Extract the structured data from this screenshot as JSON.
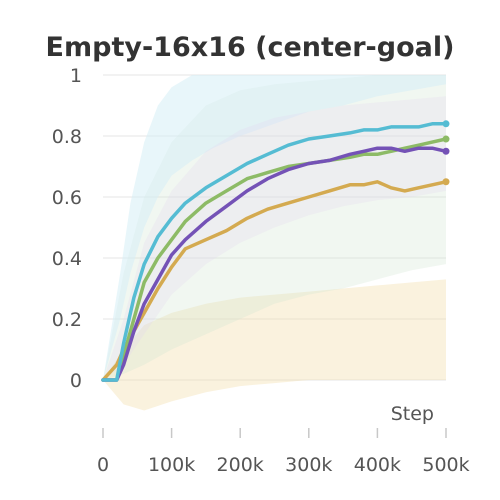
{
  "chart_data": {
    "type": "line",
    "title": "Empty-16x16 (center-goal)",
    "xlabel": "Step",
    "ylabel": "",
    "xlim": [
      0,
      500000
    ],
    "ylim": [
      0,
      1
    ],
    "grid": true,
    "legend": "none",
    "x_ticks": [
      {
        "value": 0,
        "label": "0"
      },
      {
        "value": 100000,
        "label": "100k"
      },
      {
        "value": 200000,
        "label": "200k"
      },
      {
        "value": 300000,
        "label": "300k"
      },
      {
        "value": 400000,
        "label": "400k"
      },
      {
        "value": 500000,
        "label": "500k"
      }
    ],
    "y_ticks": [
      {
        "value": 0,
        "label": "0"
      },
      {
        "value": 0.2,
        "label": "0.2"
      },
      {
        "value": 0.4,
        "label": "0.4"
      },
      {
        "value": 0.6,
        "label": "0.6"
      },
      {
        "value": 0.8,
        "label": "0.8"
      },
      {
        "value": 1,
        "label": "1"
      }
    ],
    "series": [
      {
        "color": "#f0d9a0",
        "band_opacity": 0.35,
        "x": [
          0,
          30000,
          60000,
          100000,
          150000,
          200000,
          250000,
          300000,
          350000,
          400000,
          450000,
          500000
        ],
        "lower": [
          0,
          -0.08,
          -0.1,
          -0.07,
          -0.04,
          -0.02,
          -0.01,
          0,
          0,
          0,
          0,
          0
        ],
        "upper": [
          0,
          0.1,
          0.18,
          0.22,
          0.25,
          0.27,
          0.28,
          0.29,
          0.3,
          0.31,
          0.32,
          0.33
        ]
      },
      {
        "color": "#cfe5cf",
        "band_opacity": 0.3,
        "x": [
          0,
          30000,
          60000,
          100000,
          150000,
          200000,
          250000,
          300000,
          350000,
          400000,
          450000,
          500000
        ],
        "lower": [
          0,
          0.02,
          0.05,
          0.1,
          0.15,
          0.2,
          0.25,
          0.28,
          0.3,
          0.33,
          0.36,
          0.38
        ],
        "upper": [
          0,
          0.35,
          0.6,
          0.78,
          0.9,
          0.95,
          0.97,
          0.98,
          0.99,
          1,
          1,
          1
        ]
      },
      {
        "color": "#d6eff5",
        "band_opacity": 0.55,
        "x": [
          0,
          25000,
          40000,
          60000,
          80000,
          100000,
          130000,
          160000,
          200000,
          250000,
          300000,
          350000,
          400000,
          450000,
          500000
        ],
        "lower": [
          0,
          0.2,
          0.35,
          0.5,
          0.6,
          0.67,
          0.72,
          0.76,
          0.8,
          0.84,
          0.88,
          0.9,
          0.93,
          0.95,
          0.97
        ],
        "upper": [
          0,
          0.35,
          0.58,
          0.78,
          0.9,
          0.96,
          1,
          1,
          1,
          1,
          1,
          1,
          1,
          1,
          1
        ]
      },
      {
        "color": "#e3d3ee",
        "band_opacity": 0.25,
        "x": [
          0,
          30000,
          60000,
          100000,
          150000,
          200000,
          250000,
          300000,
          350000,
          400000,
          450000,
          500000
        ],
        "lower": [
          0,
          0.05,
          0.15,
          0.28,
          0.38,
          0.45,
          0.5,
          0.54,
          0.57,
          0.59,
          0.6,
          0.62
        ],
        "upper": [
          0,
          0.2,
          0.45,
          0.62,
          0.75,
          0.82,
          0.86,
          0.88,
          0.9,
          0.91,
          0.92,
          0.93
        ]
      },
      {
        "color": "#d4aa50",
        "x": [
          0,
          20000,
          30000,
          45000,
          60000,
          80000,
          100000,
          120000,
          150000,
          180000,
          210000,
          240000,
          270000,
          300000,
          330000,
          360000,
          380000,
          400000,
          420000,
          440000,
          460000,
          480000,
          500000
        ],
        "y": [
          0,
          0.05,
          0.1,
          0.16,
          0.22,
          0.3,
          0.37,
          0.43,
          0.46,
          0.49,
          0.53,
          0.56,
          0.58,
          0.6,
          0.62,
          0.64,
          0.64,
          0.65,
          0.63,
          0.62,
          0.63,
          0.64,
          0.65
        ]
      },
      {
        "color": "#8dbb66",
        "x": [
          0,
          20000,
          30000,
          45000,
          60000,
          80000,
          100000,
          120000,
          150000,
          180000,
          210000,
          240000,
          270000,
          300000,
          330000,
          360000,
          380000,
          400000,
          420000,
          440000,
          460000,
          480000,
          500000
        ],
        "y": [
          0,
          0,
          0.08,
          0.2,
          0.32,
          0.4,
          0.46,
          0.52,
          0.58,
          0.62,
          0.66,
          0.68,
          0.7,
          0.71,
          0.72,
          0.73,
          0.74,
          0.74,
          0.75,
          0.76,
          0.77,
          0.78,
          0.79
        ]
      },
      {
        "color": "#7452b6",
        "x": [
          0,
          20000,
          30000,
          45000,
          60000,
          80000,
          100000,
          120000,
          150000,
          180000,
          210000,
          240000,
          270000,
          300000,
          330000,
          360000,
          380000,
          400000,
          420000,
          440000,
          460000,
          480000,
          500000
        ],
        "y": [
          0,
          0,
          0.05,
          0.16,
          0.25,
          0.33,
          0.41,
          0.46,
          0.52,
          0.57,
          0.62,
          0.66,
          0.69,
          0.71,
          0.72,
          0.74,
          0.75,
          0.76,
          0.76,
          0.75,
          0.76,
          0.76,
          0.75
        ]
      },
      {
        "color": "#55bcd3",
        "x": [
          0,
          20000,
          30000,
          45000,
          60000,
          80000,
          100000,
          120000,
          150000,
          180000,
          210000,
          240000,
          270000,
          300000,
          330000,
          360000,
          380000,
          400000,
          420000,
          440000,
          460000,
          480000,
          500000
        ],
        "y": [
          0,
          0,
          0.12,
          0.27,
          0.38,
          0.47,
          0.53,
          0.58,
          0.63,
          0.67,
          0.71,
          0.74,
          0.77,
          0.79,
          0.8,
          0.81,
          0.82,
          0.82,
          0.83,
          0.83,
          0.83,
          0.84,
          0.84
        ]
      }
    ]
  }
}
